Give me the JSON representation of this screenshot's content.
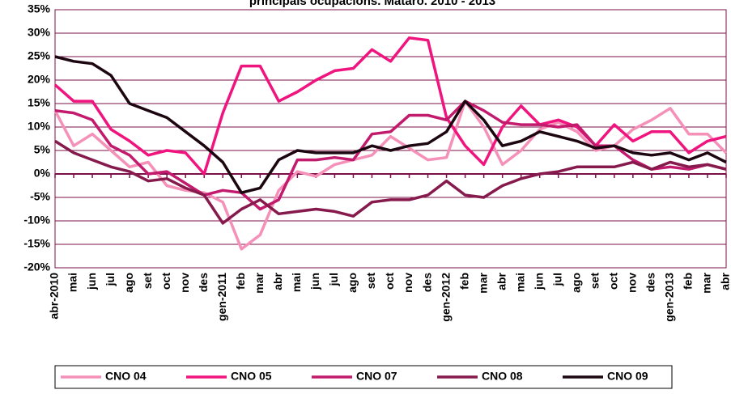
{
  "chart_data": {
    "type": "line",
    "title": "principals ocupacions. Mataró. 2010 - 2013",
    "categories": [
      "abr-2010",
      "mai",
      "jun",
      "jul",
      "ago",
      "set",
      "oct",
      "nov",
      "des",
      "gen-2011",
      "feb",
      "mar",
      "abr",
      "mai",
      "jun",
      "jul",
      "ago",
      "set",
      "oct",
      "nov",
      "des",
      "gen-2012",
      "feb",
      "mar",
      "abr",
      "mai",
      "jun",
      "jul",
      "ago",
      "set",
      "oct",
      "nov",
      "des",
      "gen-2013",
      "feb",
      "mar",
      "abr"
    ],
    "series": [
      {
        "name": "CNO 04",
        "color": "#f590b9",
        "values": [
          13.5,
          6,
          8.5,
          5,
          1.5,
          2.5,
          -2.5,
          -3.5,
          -4,
          -6,
          -16,
          -13,
          -3.5,
          0.5,
          -0.5,
          2,
          3,
          4,
          8,
          5.5,
          3,
          3.5,
          15.5,
          10,
          2,
          5,
          9.5,
          11,
          9,
          5,
          6,
          9.5,
          11.5,
          14,
          8.5,
          8.5,
          4.5
        ]
      },
      {
        "name": "CNO 05",
        "color": "#f0147e",
        "values": [
          19,
          15.5,
          15.5,
          9.5,
          7,
          4,
          5,
          4.5,
          0,
          13,
          23,
          23,
          15.5,
          17.5,
          20,
          22,
          22.5,
          26.5,
          24,
          29,
          28.5,
          12,
          6,
          2,
          10,
          14.5,
          10.5,
          11.5,
          10,
          6,
          10.5,
          7,
          9,
          9,
          4.5,
          7,
          8
        ]
      },
      {
        "name": "CNO 07",
        "color": "#c21a6c",
        "values": [
          13.5,
          13,
          11.5,
          6,
          4,
          0,
          0.5,
          -2,
          -4.5,
          -3.5,
          -4,
          -7.5,
          -5.5,
          3,
          3,
          3.5,
          3,
          8.5,
          9,
          12.5,
          12.5,
          11.5,
          15.5,
          13.5,
          11,
          10.5,
          10.5,
          10,
          10.5,
          6,
          6,
          3,
          1,
          1.5,
          1,
          2,
          1
        ]
      },
      {
        "name": "CNO 08",
        "color": "#861a4c",
        "values": [
          7,
          4.5,
          3,
          1.5,
          0.5,
          -1.5,
          -1,
          -3,
          -4.5,
          -10.5,
          -7.5,
          -5.5,
          -8.5,
          -8,
          -7.5,
          -8,
          -9,
          -6,
          -5.5,
          -5.5,
          -4.5,
          -1.5,
          -4.5,
          -5,
          -2.5,
          -1,
          0,
          0.5,
          1.5,
          1.5,
          1.5,
          2.5,
          1,
          2.5,
          1.5,
          2,
          1
        ]
      },
      {
        "name": "CNO 09",
        "color": "#1c0610",
        "values": [
          25,
          24,
          23.5,
          21,
          15,
          13.5,
          12,
          9,
          6,
          2.5,
          -4,
          -3,
          3,
          5,
          4.5,
          4.5,
          4.5,
          6,
          5,
          6,
          6.5,
          9,
          15.5,
          11.5,
          6,
          7,
          9,
          8,
          7,
          5.5,
          6,
          4.5,
          4,
          4.5,
          3,
          4.5,
          2.5
        ]
      }
    ],
    "ylim": [
      -20,
      35
    ],
    "yticks": [
      {
        "value": -20,
        "label": "-20%"
      },
      {
        "value": -15,
        "label": "-15%"
      },
      {
        "value": -10,
        "label": "-10%"
      },
      {
        "value": -5,
        "label": "-5%"
      },
      {
        "value": 0,
        "label": "0%"
      },
      {
        "value": 5,
        "label": "5%"
      },
      {
        "value": 10,
        "label": "10%"
      },
      {
        "value": 15,
        "label": "15%"
      },
      {
        "value": 20,
        "label": "20%"
      },
      {
        "value": 25,
        "label": "25%"
      },
      {
        "value": 30,
        "label": "30%"
      },
      {
        "value": 35,
        "label": "35%"
      }
    ],
    "grid": true
  }
}
